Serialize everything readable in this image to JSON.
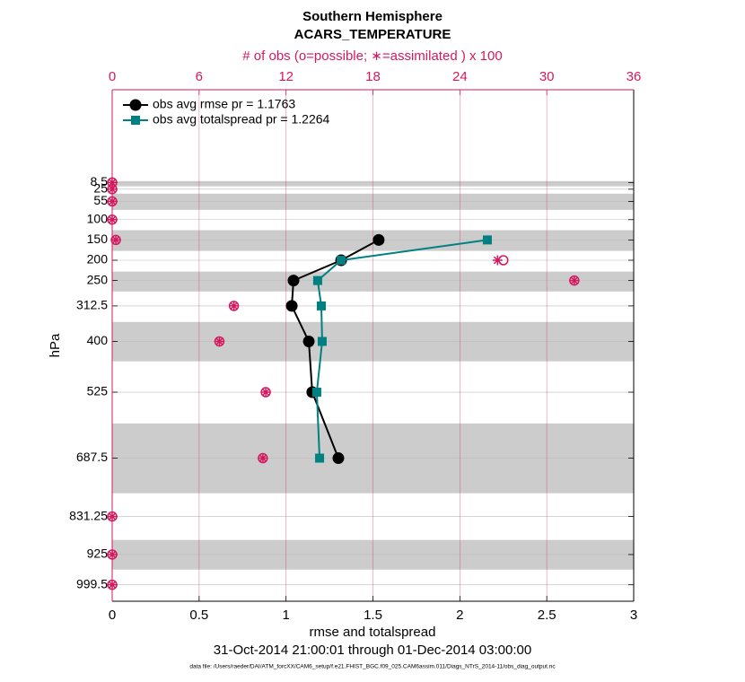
{
  "chart_data": {
    "type": "line",
    "title": "Southern Hemisphere",
    "subtitle": "ACARS_TEMPERATURE",
    "x2label": "# of obs (o=possible; ∗=assimilated ) x 100",
    "xlabel": "rmse and totalspread",
    "ylabel": "hPa",
    "date_range": "31-Oct-2014 21:00:01 through 01-Dec-2014 03:00:00",
    "data_file": "data file: /Users/raeder/DAI/ATM_forcXX/CAM6_setup/f.e21.FHIST_BGC.f09_025.CAM6assim.011/Diags_NTrS_2014-11/obs_diag_output.nc",
    "y": [
      8.5,
      25,
      55,
      100,
      150,
      200,
      250,
      312.5,
      400,
      525,
      687.5,
      831.25,
      925,
      999.5
    ],
    "ylim": [
      -220,
      1040
    ],
    "y_reversed": true,
    "yticks": [
      8.5,
      25,
      55,
      100,
      150,
      200,
      250,
      312.5,
      400,
      525,
      687.5,
      831.25,
      925,
      999.5
    ],
    "xlim": [
      0,
      3
    ],
    "xticks": [
      0,
      0.5,
      1,
      1.5,
      2,
      2.5,
      3
    ],
    "x2lim": [
      0,
      36
    ],
    "x2ticks": [
      0,
      6,
      12,
      18,
      24,
      30,
      36
    ],
    "x2color": "#d6185f",
    "grid": true,
    "legend": "upper left",
    "bands": [
      [
        5,
        18
      ],
      [
        36,
        76
      ],
      [
        126,
        177
      ],
      [
        228,
        277
      ],
      [
        352,
        449
      ],
      [
        602,
        774
      ],
      [
        889,
        962
      ]
    ],
    "series": [
      {
        "name": "obs avg rmse pr = 1.1763",
        "color": "#000000",
        "marker": "circle",
        "values": [
          null,
          null,
          null,
          null,
          1.533,
          1.317,
          1.043,
          1.033,
          1.131,
          1.151,
          1.301,
          null,
          null,
          null
        ]
      },
      {
        "name": "obs avg totalspread pr = 1.2264",
        "color": "#008080",
        "marker": "square",
        "values": [
          null,
          null,
          null,
          null,
          2.158,
          1.317,
          1.182,
          1.203,
          1.208,
          1.177,
          1.193,
          null,
          null,
          null
        ]
      },
      {
        "color": "#d6185f",
        "marker": "o",
        "axis": "x2",
        "values": [
          0,
          0,
          0,
          0,
          0.25,
          27.0,
          31.9,
          8.4,
          7.4,
          10.6,
          10.4,
          0,
          0,
          0
        ]
      },
      {
        "color": "#d6185f",
        "marker": "asterisk",
        "axis": "x2",
        "values": [
          0,
          0,
          0,
          0,
          0.25,
          26.6,
          31.9,
          8.4,
          7.4,
          10.6,
          10.4,
          0,
          0,
          0
        ]
      }
    ]
  }
}
